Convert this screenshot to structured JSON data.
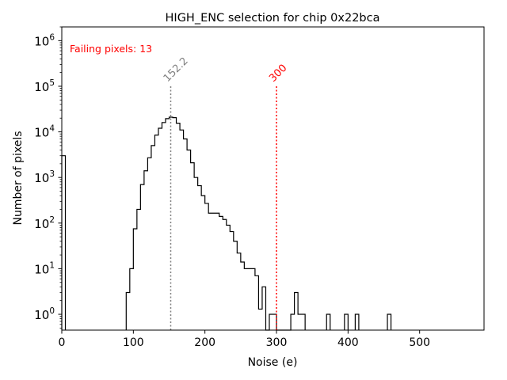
{
  "chart_data": {
    "type": "histogram",
    "title": "HIGH_ENC selection for chip 0x22bca",
    "xlabel": "Noise (e)",
    "ylabel": "Number of pixels",
    "xlim": [
      0,
      590
    ],
    "ylim": [
      0.45,
      2000000
    ],
    "yscale": "log",
    "grid": false,
    "x_ticks": [
      0,
      100,
      200,
      300,
      400,
      500
    ],
    "x_tick_labels": [
      "0",
      "100",
      "200",
      "300",
      "400",
      "500"
    ],
    "y_ticks": [
      1,
      10,
      100,
      1000,
      10000,
      100000,
      1000000
    ],
    "y_tick_bases": [
      "10",
      "10",
      "10",
      "10",
      "10",
      "10",
      "10"
    ],
    "y_tick_exponents": [
      "0",
      "1",
      "2",
      "3",
      "4",
      "5",
      "6"
    ],
    "bin_width": 5,
    "histogram_color": "#000000",
    "bins": [
      [
        0,
        3000
      ],
      [
        90,
        3
      ],
      [
        95,
        10
      ],
      [
        100,
        75
      ],
      [
        105,
        200
      ],
      [
        110,
        700
      ],
      [
        115,
        1400
      ],
      [
        120,
        2700
      ],
      [
        125,
        5000
      ],
      [
        130,
        8500
      ],
      [
        135,
        12000
      ],
      [
        140,
        16000
      ],
      [
        145,
        19500
      ],
      [
        150,
        21000
      ],
      [
        155,
        20500
      ],
      [
        160,
        15500
      ],
      [
        165,
        11000
      ],
      [
        170,
        7000
      ],
      [
        175,
        4000
      ],
      [
        180,
        2100
      ],
      [
        185,
        1000
      ],
      [
        190,
        660
      ],
      [
        195,
        400
      ],
      [
        200,
        270
      ],
      [
        205,
        165
      ],
      [
        210,
        165
      ],
      [
        215,
        165
      ],
      [
        220,
        140
      ],
      [
        225,
        120
      ],
      [
        230,
        90
      ],
      [
        235,
        65
      ],
      [
        240,
        40
      ],
      [
        245,
        22
      ],
      [
        250,
        14
      ],
      [
        255,
        10
      ],
      [
        260,
        10
      ],
      [
        265,
        10
      ],
      [
        270,
        7
      ],
      [
        275,
        1.3
      ],
      [
        280,
        4
      ],
      [
        285,
        0
      ],
      [
        290,
        1
      ],
      [
        295,
        1
      ],
      [
        300,
        0
      ],
      [
        305,
        0
      ],
      [
        310,
        0
      ],
      [
        315,
        0
      ],
      [
        320,
        1
      ],
      [
        325,
        3
      ],
      [
        330,
        1
      ],
      [
        335,
        1
      ],
      [
        370,
        1
      ],
      [
        395,
        1
      ],
      [
        410,
        1
      ],
      [
        455,
        1
      ]
    ],
    "vlines": [
      {
        "x": 152.2,
        "label": "152.2",
        "color": "#808080",
        "ymax": 100000
      },
      {
        "x": 300,
        "label": "300",
        "color": "#ff0000",
        "ymax": 100000
      }
    ],
    "annotation": {
      "text": "Failing pixels: 13",
      "color": "#ff0000"
    }
  }
}
